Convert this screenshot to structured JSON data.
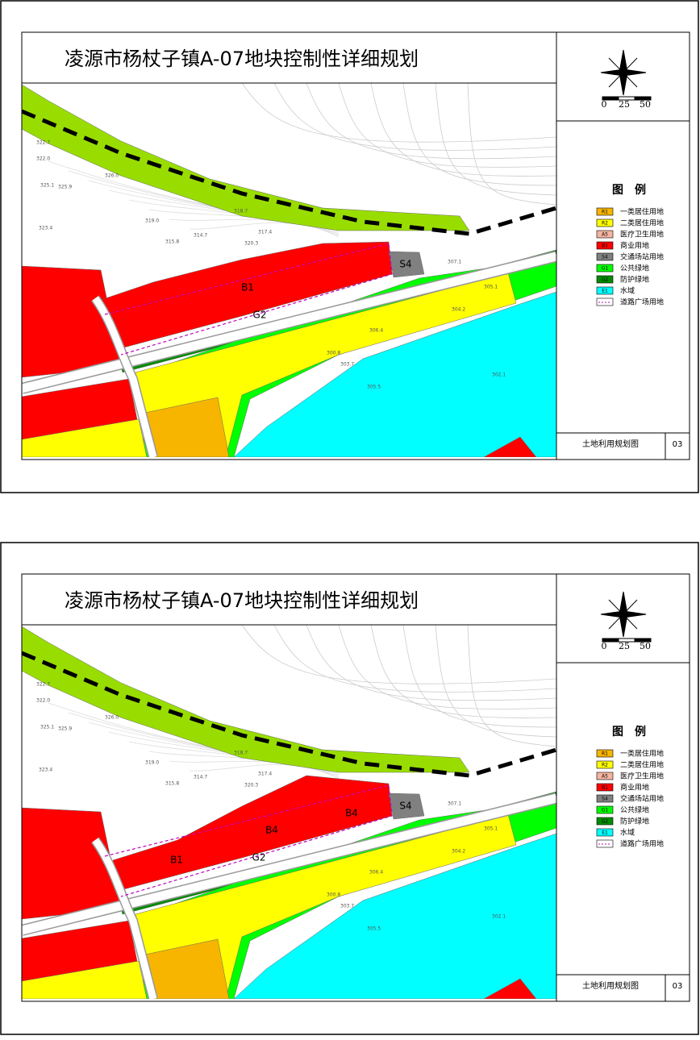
{
  "panels": [
    {
      "title": "凌源市杨杖子镇A-07地块控制性详细规划",
      "scale": [
        "0",
        "25",
        "50"
      ],
      "legend": {
        "heading": "图　例",
        "items": [
          {
            "code": "R1",
            "label": "一类居住用地",
            "color": "#f7b500"
          },
          {
            "code": "R2",
            "label": "二类居住用地",
            "color": "#ffff00"
          },
          {
            "code": "A5",
            "label": "医疗卫生用地",
            "color": "#f4b4a0"
          },
          {
            "code": "B1",
            "label": "商业用地",
            "color": "#ff0000"
          },
          {
            "code": "S4",
            "label": "交通场站用地",
            "color": "#808080"
          },
          {
            "code": "G1",
            "label": "公共绿地",
            "color": "#00ff00"
          },
          {
            "code": "G2",
            "label": "防护绿地",
            "color": "#008c00"
          },
          {
            "code": "E1",
            "label": "水域",
            "color": "#00ffff"
          },
          {
            "code": null,
            "label": "道路广场用地",
            "color": "#ffffff"
          }
        ]
      },
      "footer": {
        "name": "土地利用规划图",
        "number": "03"
      },
      "zones": [
        "B1",
        "G2",
        "S4"
      ],
      "elevations": [
        "322.7",
        "322.0",
        "326.0",
        "325.1",
        "325.9",
        "323.4",
        "319.0",
        "315.8",
        "314.7",
        "318.7",
        "320.3",
        "317.4",
        "307.1",
        "305.1",
        "304.2",
        "306.4",
        "300.8",
        "303.7",
        "302.1",
        "305.5"
      ]
    },
    {
      "title": "凌源市杨杖子镇A-07地块控制性详细规划",
      "scale": [
        "0",
        "25",
        "50"
      ],
      "legend": {
        "heading": "图　例",
        "items": [
          {
            "code": "R1",
            "label": "一类居住用地",
            "color": "#f7b500"
          },
          {
            "code": "R2",
            "label": "二类居住用地",
            "color": "#ffff00"
          },
          {
            "code": "A5",
            "label": "医疗卫生用地",
            "color": "#f4b4a0"
          },
          {
            "code": "B1",
            "label": "商业用地",
            "color": "#ff0000"
          },
          {
            "code": "S4",
            "label": "交通场站用地",
            "color": "#808080"
          },
          {
            "code": "G1",
            "label": "公共绿地",
            "color": "#00ff00"
          },
          {
            "code": "G2",
            "label": "防护绿地",
            "color": "#008c00"
          },
          {
            "code": "E1",
            "label": "水域",
            "color": "#00ffff"
          },
          {
            "code": null,
            "label": "道路广场用地",
            "color": "#ffffff"
          }
        ]
      },
      "footer": {
        "name": "土地利用规划图",
        "number": "03"
      },
      "zones": [
        "B1",
        "B4",
        "B4",
        "G2",
        "S4"
      ],
      "elevations": [
        "322.7",
        "322.0",
        "326.0",
        "325.1",
        "325.9",
        "323.4",
        "319.0",
        "315.8",
        "314.7",
        "318.7",
        "320.3",
        "317.4",
        "307.1",
        "305.1",
        "304.2",
        "306.4",
        "300.8",
        "303.7",
        "302.1",
        "305.5"
      ]
    }
  ]
}
